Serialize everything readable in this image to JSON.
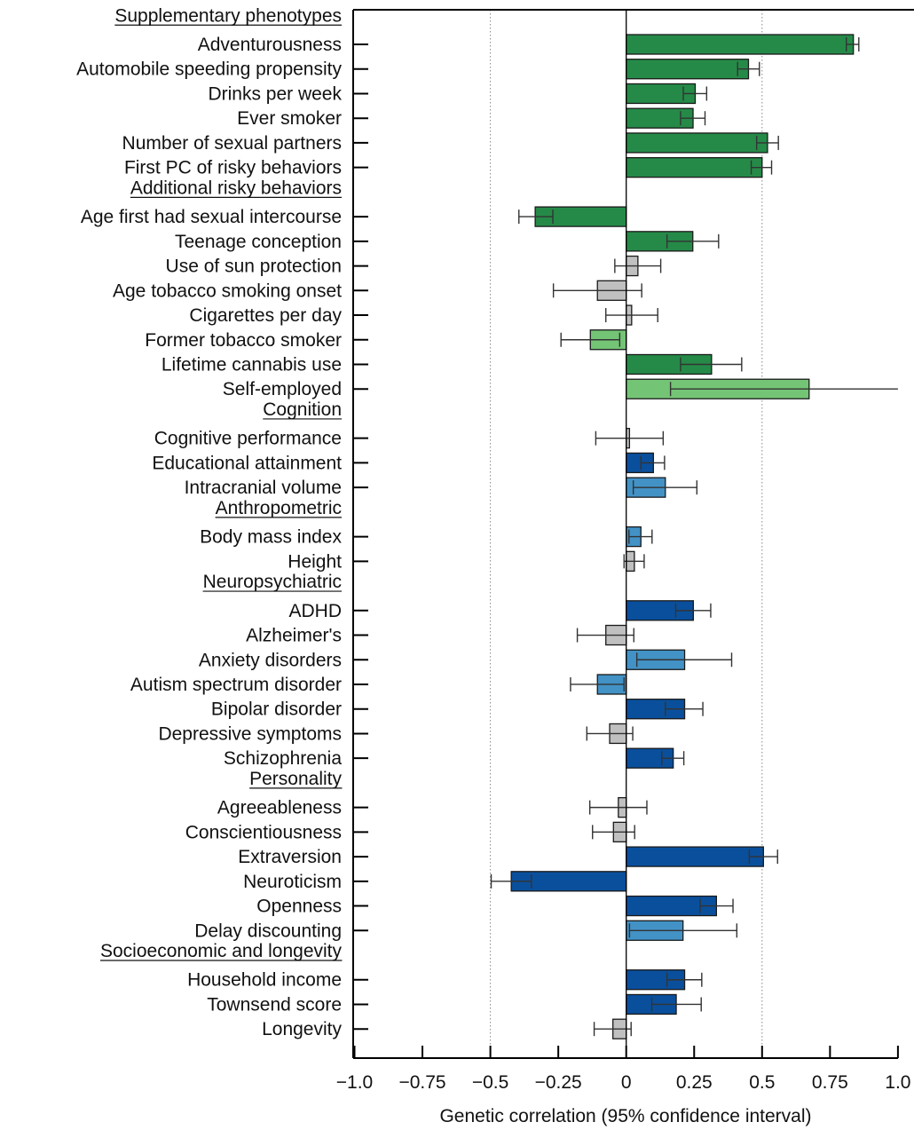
{
  "chart_data": {
    "type": "bar",
    "orientation": "horizontal",
    "title": "",
    "xlabel": "Genetic correlation (95% confidence interval)",
    "ylabel": "",
    "xlim": [
      -1.0,
      1.0
    ],
    "xticks": [
      -1.0,
      -0.75,
      -0.5,
      -0.25,
      0,
      0.25,
      0.5,
      0.75,
      1.0
    ],
    "xtick_labels": [
      "−1.0",
      "−0.75",
      "−0.5",
      "−0.25",
      "0",
      "0.25",
      "0.5",
      "0.75",
      "1.0"
    ],
    "reference_lines": [
      -0.5,
      0.5
    ],
    "colors": {
      "dark_green": "#258a48",
      "light_green": "#74c476",
      "gray": "#c0c0c0",
      "dark_blue": "#0a4f9c",
      "light_blue": "#4292c6"
    },
    "rows": [
      {
        "type": "heading",
        "label": "Supplementary phenotypes"
      },
      {
        "type": "item",
        "label": "Adventurousness",
        "value": 0.836,
        "ci": [
          0.81,
          0.856
        ],
        "color": "dark_green"
      },
      {
        "type": "item",
        "label": "Automobile speeding propensity",
        "value": 0.45,
        "ci": [
          0.41,
          0.49
        ],
        "color": "dark_green"
      },
      {
        "type": "item",
        "label": "Drinks per week",
        "value": 0.254,
        "ci": [
          0.21,
          0.296
        ],
        "color": "dark_green"
      },
      {
        "type": "item",
        "label": "Ever smoker",
        "value": 0.246,
        "ci": [
          0.2,
          0.29
        ],
        "color": "dark_green"
      },
      {
        "type": "item",
        "label": "Number of sexual partners",
        "value": 0.52,
        "ci": [
          0.48,
          0.56
        ],
        "color": "dark_green"
      },
      {
        "type": "item",
        "label": "First PC of risky behaviors",
        "value": 0.5,
        "ci": [
          0.46,
          0.535
        ],
        "color": "dark_green"
      },
      {
        "type": "heading",
        "label": "Additional risky behaviors"
      },
      {
        "type": "item",
        "label": "Age first had sexual intercourse",
        "value": -0.335,
        "ci": [
          -0.395,
          -0.27
        ],
        "color": "dark_green"
      },
      {
        "type": "item",
        "label": "Teenage conception",
        "value": 0.245,
        "ci": [
          0.15,
          0.34
        ],
        "color": "dark_green"
      },
      {
        "type": "item",
        "label": "Use of sun protection",
        "value": 0.043,
        "ci": [
          -0.042,
          0.127
        ],
        "color": "gray"
      },
      {
        "type": "item",
        "label": "Age tobacco smoking onset",
        "value": -0.106,
        "ci": [
          -0.268,
          0.057
        ],
        "color": "gray"
      },
      {
        "type": "item",
        "label": "Cigarettes per day",
        "value": 0.02,
        "ci": [
          -0.075,
          0.116
        ],
        "color": "gray"
      },
      {
        "type": "item",
        "label": "Former tobacco smoker",
        "value": -0.132,
        "ci": [
          -0.24,
          -0.024
        ],
        "color": "light_green"
      },
      {
        "type": "item",
        "label": "Lifetime cannabis use",
        "value": 0.314,
        "ci": [
          0.2,
          0.425
        ],
        "color": "dark_green"
      },
      {
        "type": "item",
        "label": "Self-employed",
        "value": 0.673,
        "ci": [
          0.163,
          1.0
        ],
        "color": "light_green"
      },
      {
        "type": "heading",
        "label": "Cognition"
      },
      {
        "type": "item",
        "label": "Cognitive performance",
        "value": 0.012,
        "ci": [
          -0.112,
          0.136
        ],
        "color": "gray"
      },
      {
        "type": "item",
        "label": "Educational attainment",
        "value": 0.1,
        "ci": [
          0.054,
          0.141
        ],
        "color": "dark_blue"
      },
      {
        "type": "item",
        "label": "Intracranial volume",
        "value": 0.144,
        "ci": [
          0.026,
          0.26
        ],
        "color": "light_blue"
      },
      {
        "type": "heading",
        "label": "Anthropometric"
      },
      {
        "type": "item",
        "label": "Body mass index",
        "value": 0.054,
        "ci": [
          0.01,
          0.095
        ],
        "color": "light_blue"
      },
      {
        "type": "item",
        "label": "Height",
        "value": 0.03,
        "ci": [
          -0.008,
          0.066
        ],
        "color": "gray"
      },
      {
        "type": "heading",
        "label": "Neuropsychiatric"
      },
      {
        "type": "item",
        "label": "ADHD",
        "value": 0.247,
        "ci": [
          0.182,
          0.311
        ],
        "color": "dark_blue"
      },
      {
        "type": "item",
        "label": "Alzheimer's",
        "value": -0.075,
        "ci": [
          -0.18,
          0.028
        ],
        "color": "gray"
      },
      {
        "type": "item",
        "label": "Anxiety disorders",
        "value": 0.215,
        "ci": [
          0.039,
          0.388
        ],
        "color": "light_blue"
      },
      {
        "type": "item",
        "label": "Autism spectrum disorder ",
        "value": -0.106,
        "ci": [
          -0.205,
          -0.008
        ],
        "color": "light_blue"
      },
      {
        "type": "item",
        "label": "Bipolar disorder",
        "value": 0.215,
        "ci": [
          0.144,
          0.282
        ],
        "color": "dark_blue"
      },
      {
        "type": "item",
        "label": "Depressive symptoms",
        "value": -0.061,
        "ci": [
          -0.145,
          0.024
        ],
        "color": "gray"
      },
      {
        "type": "item",
        "label": "Schizophrenia",
        "value": 0.173,
        "ci": [
          0.131,
          0.212
        ],
        "color": "dark_blue"
      },
      {
        "type": "heading",
        "label": "Personality"
      },
      {
        "type": "item",
        "label": "Agreeableness",
        "value": -0.029,
        "ci": [
          -0.134,
          0.076
        ],
        "color": "gray"
      },
      {
        "type": "item",
        "label": "Conscientiousness",
        "value": -0.047,
        "ci": [
          -0.124,
          0.031
        ],
        "color": "gray"
      },
      {
        "type": "item",
        "label": "Extraversion",
        "value": 0.505,
        "ci": [
          0.453,
          0.557
        ],
        "color": "dark_blue"
      },
      {
        "type": "item",
        "label": "Neuroticism",
        "value": -0.423,
        "ci": [
          -0.497,
          -0.349
        ],
        "color": "dark_blue"
      },
      {
        "type": "item",
        "label": "Openness",
        "value": 0.332,
        "ci": [
          0.272,
          0.393
        ],
        "color": "dark_blue"
      },
      {
        "type": "item",
        "label": "Delay discounting ",
        "value": 0.209,
        "ci": [
          0.012,
          0.407
        ],
        "color": "light_blue"
      },
      {
        "type": "heading",
        "label": "Socioeconomic and longevity"
      },
      {
        "type": "item",
        "label": "Household income",
        "value": 0.215,
        "ci": [
          0.15,
          0.278
        ],
        "color": "dark_blue"
      },
      {
        "type": "item",
        "label": "Townsend score",
        "value": 0.184,
        "ci": [
          0.094,
          0.276
        ],
        "color": "dark_blue"
      },
      {
        "type": "item",
        "label": "Longevity",
        "value": -0.049,
        "ci": [
          -0.118,
          0.018
        ],
        "color": "gray"
      }
    ]
  }
}
